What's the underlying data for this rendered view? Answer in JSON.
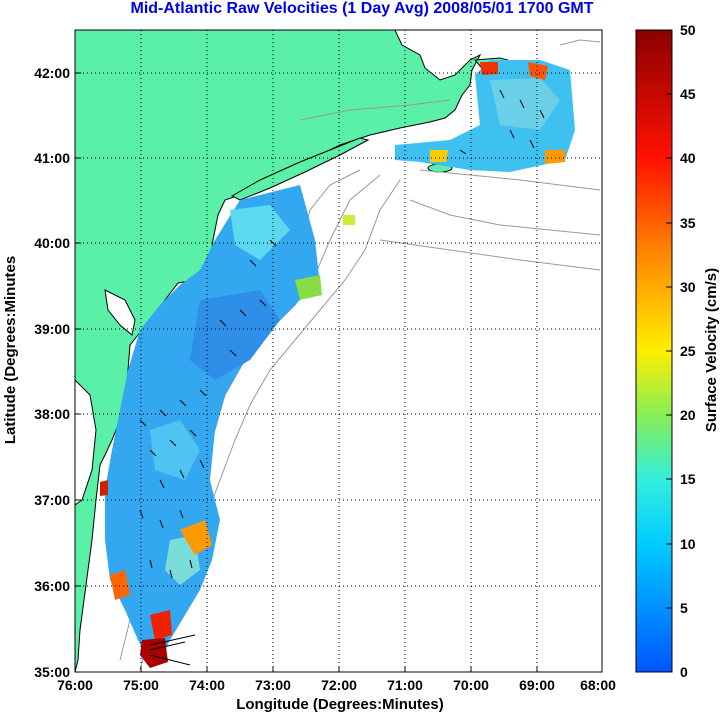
{
  "title": "Mid-Atlantic Raw Velocities (1 Day Avg) 2008/05/01 1700 GMT",
  "xaxis": {
    "label": "Longitude (Degrees:Minutes)",
    "ticks": [
      "76:00",
      "75:00",
      "74:00",
      "73:00",
      "72:00",
      "71:00",
      "70:00",
      "69:00",
      "68:00"
    ]
  },
  "yaxis": {
    "label": "Latitude (Degrees:Minutes",
    "ticks": [
      "42:00",
      "41:00",
      "40:00",
      "39:00",
      "38:00",
      "37:00",
      "36:00",
      "35:00"
    ]
  },
  "colorbar": {
    "label": "Surface Velocity (cm/s)",
    "ticks": [
      "50",
      "45",
      "40",
      "35",
      "30",
      "25",
      "20",
      "15",
      "10",
      "5",
      "0"
    ],
    "min": 0,
    "max": 50
  },
  "colors": {
    "land": "#5af0a8",
    "title": "#0000ee",
    "coast_line": "#000000",
    "bathymetry": "#999999"
  }
}
